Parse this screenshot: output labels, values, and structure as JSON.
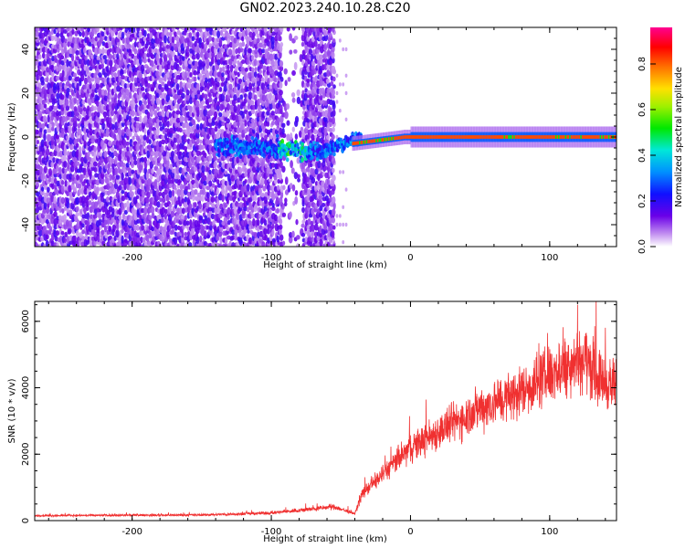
{
  "title": "GN02.2023.240.10.28.C20",
  "chart_data": [
    {
      "type": "heatmap",
      "xlabel": "Height of straight line (km)",
      "ylabel": "Frequency (Hz)",
      "xlim": [
        -270,
        148
      ],
      "ylim": [
        -50,
        50
      ],
      "xticks": [
        -200,
        -100,
        0,
        100
      ],
      "yticks": [
        -40,
        -20,
        0,
        20,
        40
      ],
      "grid": false,
      "colorbar": {
        "label": "Normalized spectral amplitude",
        "range": [
          0,
          0.96
        ],
        "ticks": [
          0.0,
          0.2,
          0.4,
          0.6,
          0.8
        ],
        "colormap": "rainbow (white → violet → blue → cyan → green → yellow → red → magenta)"
      },
      "features": {
        "broadband_noise_region_km": [
          -270,
          -55
        ],
        "dominant_band_frequency_hz": 0,
        "dominant_band_start_km": -40,
        "dominant_band_amplitude": 0.85
      }
    },
    {
      "type": "line",
      "xlabel": "Height of straight line (km)",
      "ylabel": "SNR (10 * v/v)",
      "xlim": [
        -270,
        148
      ],
      "ylim": [
        0,
        6600
      ],
      "xticks": [
        -200,
        -100,
        0,
        100
      ],
      "yticks": [
        0,
        2000,
        4000,
        6000
      ],
      "grid": false,
      "series": [
        {
          "color": "#f03030",
          "trend_x": [
            -270,
            -150,
            -100,
            -70,
            -55,
            -40,
            -35,
            -20,
            0,
            25,
            50,
            75,
            100,
            115,
            125,
            135,
            148
          ],
          "trend_y": [
            150,
            170,
            230,
            350,
            420,
            200,
            800,
            1400,
            2200,
            2800,
            3400,
            3800,
            4400,
            4800,
            4900,
            4300,
            4000
          ],
          "noise_amplitude_pct": 25,
          "peak_value": 6500,
          "peak_x": 120
        }
      ]
    }
  ]
}
